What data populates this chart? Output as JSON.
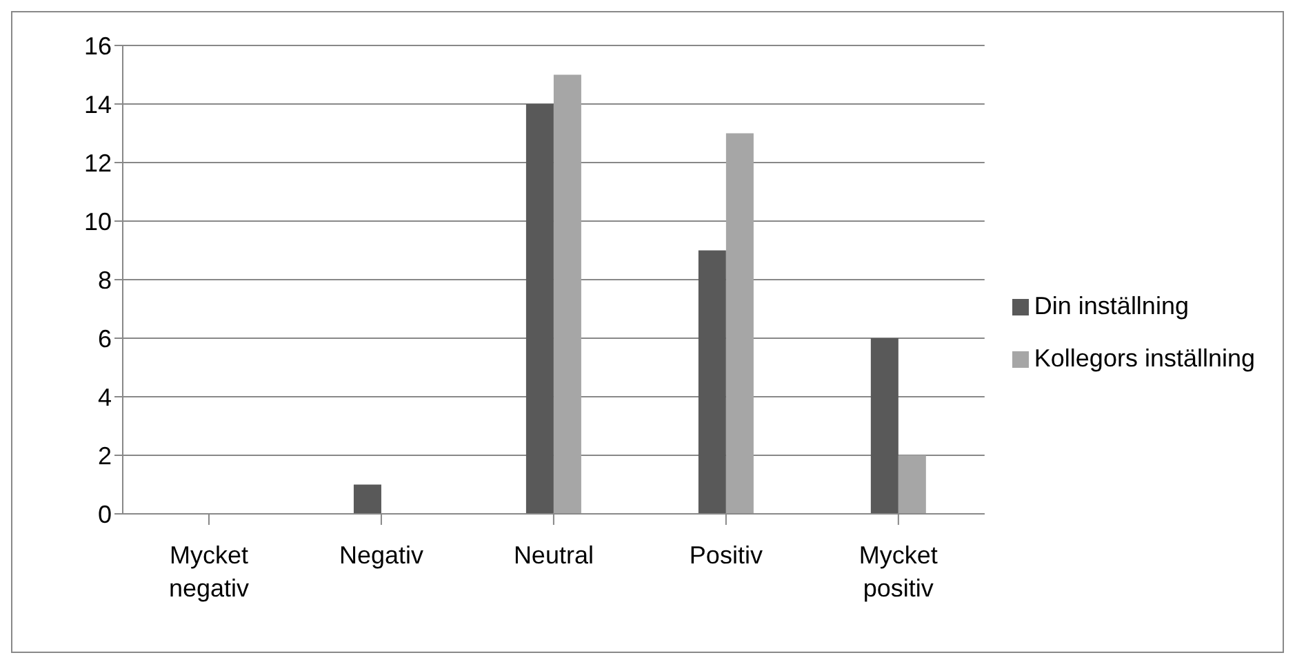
{
  "chart_data": {
    "type": "bar",
    "categories": [
      "Mycket negativ",
      "Negativ",
      "Neutral",
      "Positiv",
      "Mycket positiv"
    ],
    "series": [
      {
        "name": "Din inställning",
        "color": "#595959",
        "values": [
          0,
          1,
          14,
          9,
          6
        ]
      },
      {
        "name": "Kollegors inställning",
        "color": "#a6a6a6",
        "values": [
          0,
          0,
          15,
          13,
          2
        ]
      }
    ],
    "ylim": [
      0,
      16
    ],
    "yticks": [
      0,
      2,
      4,
      6,
      8,
      10,
      12,
      14,
      16
    ],
    "grid": "y",
    "legend": "right"
  }
}
